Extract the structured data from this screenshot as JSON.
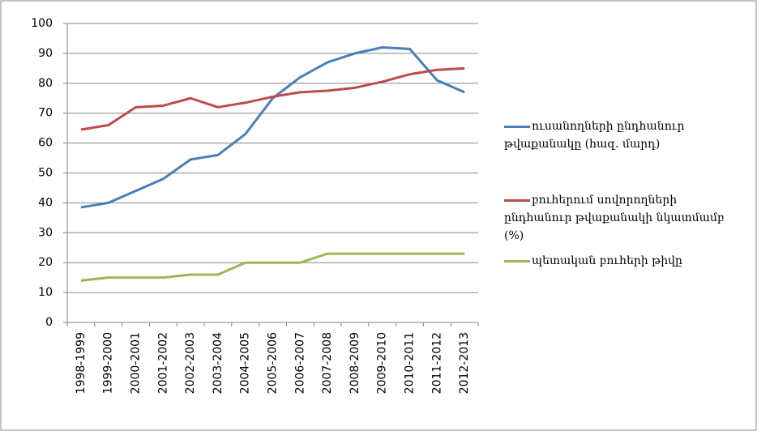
{
  "chart_data": {
    "type": "line",
    "categories": [
      "1998-1999",
      "1999-2000",
      "2000-2001",
      "2001-2002",
      "2002-2003",
      "2003-2004",
      "2004-2005",
      "2005-2006",
      "2006-2007",
      "2007-2008",
      "2008-2009",
      "2009-2010",
      "2010-2011",
      "2011-2012",
      "2012-2013"
    ],
    "series": [
      {
        "name": "ուսանողների ընդհանուր թվաքանակը (հազ. մարդ)",
        "color": "#4a7ebb",
        "values": [
          38.5,
          40,
          44,
          48,
          54.5,
          56,
          63,
          75,
          82,
          87,
          90,
          92,
          91.5,
          81,
          77
        ]
      },
      {
        "name": "բուհերում սովորողների ընդհանուր թվաքանակի նկատմամբ (%)",
        "color": "#be4b48",
        "values": [
          64.5,
          66,
          72,
          72.5,
          75,
          72,
          73.5,
          75.5,
          77,
          77.5,
          78.5,
          80.5,
          83,
          84.5,
          85
        ]
      },
      {
        "name": "պետական բուհերի թիվը",
        "color": "#98b954",
        "values": [
          14,
          15,
          15,
          15,
          16,
          16,
          20,
          20,
          20,
          23,
          23,
          23,
          23,
          23,
          23
        ]
      }
    ],
    "ylim": [
      0,
      100
    ],
    "yticks": [
      0,
      10,
      20,
      30,
      40,
      50,
      60,
      70,
      80,
      90,
      100
    ],
    "grid": true,
    "legend": "right"
  }
}
